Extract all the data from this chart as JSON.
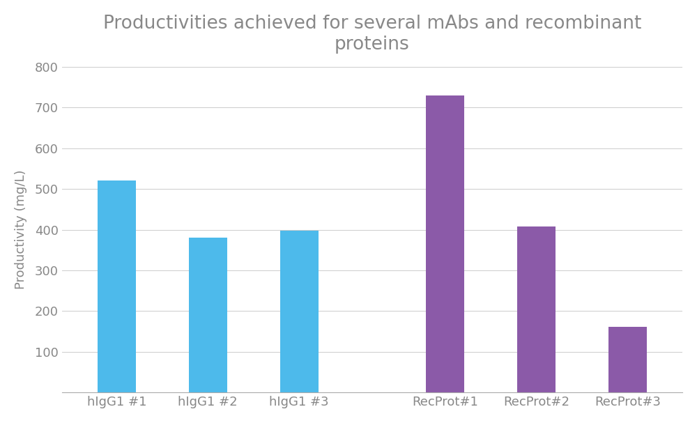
{
  "title": "Productivities achieved for several mAbs and recombinant\nproteins",
  "categories": [
    "hIgG1 #1",
    "hIgG1 #2",
    "hIgG1 #3",
    "RecProt#1",
    "RecProt#2",
    "RecProt#3"
  ],
  "values": [
    520,
    380,
    397,
    730,
    407,
    162
  ],
  "bar_colors": [
    "#4DBAEB",
    "#4DBAEB",
    "#4DBAEB",
    "#8B5AA8",
    "#8B5AA8",
    "#8B5AA8"
  ],
  "ylabel": "Productivity (mg/L)",
  "ylim": [
    0,
    800
  ],
  "yticks": [
    100,
    200,
    300,
    400,
    500,
    600,
    700,
    800
  ],
  "title_fontsize": 19,
  "ylabel_fontsize": 13,
  "tick_fontsize": 13,
  "xtick_fontsize": 13,
  "background_color": "#FFFFFF",
  "grid_color": "#CCCCCC",
  "bar_width": 0.42,
  "x_positions": [
    0,
    1,
    2,
    3.6,
    4.6,
    5.6
  ],
  "text_color": "#888888",
  "bottom_line_color": "#AAAAAA"
}
